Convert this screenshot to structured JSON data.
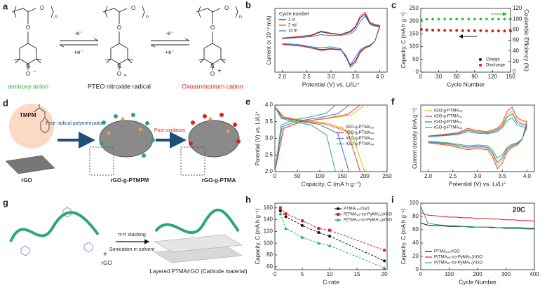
{
  "panels": {
    "a": {
      "label": "a",
      "names": [
        "aminoxy anion",
        "PTEO nitroxide radical",
        "Oxoammonium cation"
      ],
      "name_colors": [
        "#2db34a",
        "#222222",
        "#e0201b"
      ],
      "oxidation": "-e⁻",
      "reduction": "+e⁻",
      "atoms": {
        "oxygen": "O",
        "repeat": "n",
        "nitrogen": "N",
        "anion": "−",
        "radical": "•",
        "cation": "+"
      }
    },
    "d": {
      "label": "d",
      "monomer": "TMPM",
      "substrate": "rGO",
      "step1": "Free radical polymerization",
      "intermediate": "rGO-g-PTMPM",
      "step2": "Post-oxidation",
      "product": "rGO-g-PTMA"
    },
    "g": {
      "label": "g",
      "plus": "+",
      "substrate": "rGO",
      "step1": "π-π stacking",
      "step2": "Sonication in solvent",
      "product": "Layered PTMA/rGO (Cathode material)"
    }
  },
  "chart_data": [
    {
      "panel": "b",
      "type": "line",
      "xlabel": "Potential (V) vs. Li/Li⁺",
      "ylabel": "Current (x 10⁻² mA)",
      "xlim": [
        1.85,
        4.15
      ],
      "xticks": [
        {
          "value": 2,
          "label": "2.0"
        },
        2.5,
        {
          "value": 3,
          "label": "3.0"
        },
        3.5,
        {
          "value": 4,
          "label": "4.0"
        }
      ],
      "ylim": [
        -1.7,
        1.7
      ],
      "legend": "upper left",
      "legend_title": "Cycle number",
      "x": [
        2.0,
        2.2,
        2.4,
        2.6,
        2.8,
        3.0,
        3.2,
        3.4,
        3.5,
        3.6,
        3.7,
        3.8,
        3.9,
        4.0,
        3.9,
        3.8,
        3.7,
        3.6,
        3.5,
        3.4,
        3.3,
        3.2,
        3.0,
        2.8,
        2.6,
        2.4,
        2.2,
        2.0
      ],
      "series": [
        {
          "name": "1 st",
          "color": "#222222",
          "values": [
            0.1,
            0.15,
            0.2,
            0.25,
            0.45,
            0.35,
            0.3,
            0.45,
            0.7,
            1.2,
            1.4,
            0.9,
            0.8,
            0.75,
            -0.05,
            -0.3,
            -0.4,
            -0.6,
            -1.1,
            -1.35,
            -0.8,
            -0.5,
            -0.45,
            -0.5,
            -0.4,
            -0.3,
            -0.25,
            -0.2
          ]
        },
        {
          "name": "2 nd",
          "color": "#e8413c",
          "values": [
            0.12,
            0.17,
            0.22,
            0.28,
            0.5,
            0.38,
            0.32,
            0.5,
            0.75,
            1.3,
            1.5,
            0.95,
            0.85,
            0.8,
            -0.05,
            -0.32,
            -0.42,
            -0.65,
            -1.2,
            -1.45,
            -0.85,
            -0.52,
            -0.48,
            -0.55,
            -0.42,
            -0.32,
            -0.27,
            -0.22
          ]
        },
        {
          "name": "10 th",
          "color": "#3b6fd1",
          "values": [
            0.08,
            0.12,
            0.15,
            0.2,
            0.3,
            0.25,
            0.25,
            0.35,
            0.55,
            1.0,
            1.3,
            0.85,
            0.75,
            0.7,
            -0.05,
            -0.25,
            -0.35,
            -0.5,
            -0.9,
            -1.3,
            -0.9,
            -0.45,
            -0.35,
            -0.4,
            -0.35,
            -0.25,
            -0.2,
            -0.18
          ]
        }
      ]
    },
    {
      "panel": "c",
      "type": "scatter",
      "xlabel": "Cycle Number",
      "ylabel": "Capacity, C (mA h g⁻¹)",
      "y2label": "Coulombic Efficiency (%)",
      "xlim": [
        0,
        150
      ],
      "xticks": [
        0,
        30,
        60,
        90,
        120,
        150
      ],
      "ylim": [
        0,
        250
      ],
      "yticks": [
        0,
        50,
        100,
        150,
        200,
        250
      ],
      "y2lim": [
        0,
        120
      ],
      "y2ticks": [
        0,
        20,
        40,
        60,
        80,
        100,
        120
      ],
      "legend": "lower right",
      "x": [
        1,
        10,
        20,
        30,
        40,
        50,
        60,
        70,
        80,
        90,
        100,
        110,
        120,
        130,
        140,
        150
      ],
      "series": [
        {
          "name": "Charge",
          "color": "#111111",
          "values": [
            168,
            166,
            165,
            165,
            164,
            164,
            164,
            163,
            163,
            163,
            163,
            162,
            162,
            162,
            162,
            162
          ]
        },
        {
          "name": "Discharge",
          "color": "#e8141a",
          "values": [
            167,
            165,
            164,
            164,
            163,
            163,
            163,
            162,
            162,
            162,
            162,
            161,
            161,
            161,
            161,
            161
          ]
        },
        {
          "color": "#1fbf2a",
          "axis": "y2",
          "values": [
            98.5,
            99.6,
            99.8,
            99.8,
            99.9,
            99.9,
            99.9,
            99.9,
            99.9,
            99.9,
            99.9,
            99.9,
            99.9,
            99.9,
            99.9,
            99.9
          ]
        }
      ]
    },
    {
      "panel": "e",
      "type": "line",
      "xlabel": "Capacity, C (mA h g⁻¹)",
      "ylabel": "Potential (V) vs. Li/Li⁺",
      "xlim": [
        0,
        250
      ],
      "xticks": [
        0,
        50,
        100,
        150,
        200,
        250
      ],
      "ylim": [
        2,
        4
      ],
      "yticks": [
        {
          "value": 2,
          "label": "2.0"
        },
        2.5,
        {
          "value": 3,
          "label": "3.0"
        },
        3.5,
        {
          "value": 4,
          "label": "4.0"
        }
      ],
      "legend": "center right",
      "series": [
        {
          "name": "rGO-g-PTMA₂₈",
          "color": "#f2b705",
          "x": [
            0,
            20,
            60,
            120,
            170,
            200,
            null,
            0,
            20,
            60,
            120,
            170,
            200
          ],
          "values": [
            2.0,
            3.3,
            3.5,
            3.6,
            3.7,
            4.0,
            null,
            3.95,
            3.65,
            3.55,
            3.45,
            3.2,
            2.0
          ]
        },
        {
          "name": "rGO-g-PTMA₄₅",
          "color": "#e8413c",
          "x": [
            0,
            19,
            57,
            114,
            162,
            190,
            null,
            0,
            19,
            57,
            114,
            162,
            190
          ],
          "values": [
            2.0,
            3.3,
            3.5,
            3.6,
            3.72,
            4.0,
            null,
            3.95,
            3.63,
            3.53,
            3.43,
            3.2,
            2.0
          ]
        },
        {
          "name": "rGO-g-PTMA₆₂",
          "color": "#3b6fd1",
          "x": [
            0,
            16,
            50,
            99,
            140,
            165,
            null,
            0,
            16,
            50,
            99,
            140,
            165
          ],
          "values": [
            2.0,
            3.35,
            3.52,
            3.62,
            3.74,
            4.0,
            null,
            3.95,
            3.62,
            3.52,
            3.42,
            3.15,
            2.0
          ]
        },
        {
          "name": "rGO-g-PTMA₈₄",
          "color": "#2aa876",
          "x": [
            0,
            14,
            41,
            81,
            115,
            135,
            null,
            0,
            14,
            41,
            81,
            115,
            135
          ],
          "values": [
            2.0,
            3.4,
            3.55,
            3.65,
            3.76,
            4.0,
            null,
            3.95,
            3.6,
            3.5,
            3.4,
            3.1,
            2.0
          ]
        }
      ]
    },
    {
      "panel": "f",
      "type": "line",
      "xlabel": "Potential (V) vs. Li/Li⁺",
      "ylabel": "Current density (mA g⁻¹)",
      "xlim": [
        1.85,
        4.15
      ],
      "xticks": [
        {
          "value": 2,
          "label": "2.0"
        },
        2.5,
        {
          "value": 3,
          "label": "3.0"
        },
        3.5,
        {
          "value": 4,
          "label": "4.0"
        }
      ],
      "ylim": [
        -1.7,
        1.7
      ],
      "legend": "upper left",
      "x": [
        2.0,
        2.2,
        2.4,
        2.6,
        2.8,
        3.0,
        3.2,
        3.4,
        3.5,
        3.6,
        3.7,
        3.8,
        3.9,
        4.0,
        3.9,
        3.8,
        3.7,
        3.6,
        3.5,
        3.4,
        3.3,
        3.2,
        3.0,
        2.8,
        2.6,
        2.4,
        2.2,
        2.0
      ],
      "series": [
        {
          "name": "rGO-g-PTMA₂₈",
          "color": "#f2b705",
          "values": [
            0.1,
            0.15,
            0.2,
            0.25,
            0.45,
            0.35,
            0.3,
            0.45,
            0.7,
            1.2,
            1.4,
            0.9,
            0.8,
            0.75,
            -0.05,
            -0.3,
            -0.4,
            -0.6,
            -1.1,
            -1.35,
            -0.8,
            -0.5,
            -0.45,
            -0.5,
            -0.4,
            -0.3,
            -0.25,
            -0.2
          ]
        },
        {
          "name": "rGO-g-PTMA₄₅",
          "color": "#e8413c",
          "values": [
            0.12,
            0.17,
            0.23,
            0.29,
            0.52,
            0.4,
            0.35,
            0.52,
            0.8,
            1.38,
            1.6,
            1.04,
            0.92,
            0.86,
            -0.06,
            -0.35,
            -0.46,
            -0.69,
            -1.27,
            -1.55,
            -0.92,
            -0.58,
            -0.52,
            -0.58,
            -0.46,
            -0.35,
            -0.29,
            -0.23
          ]
        },
        {
          "name": "rGO-g-PTMA₆₂",
          "color": "#3b6fd1",
          "values": [
            0.09,
            0.14,
            0.18,
            0.23,
            0.41,
            0.32,
            0.27,
            0.41,
            0.63,
            1.08,
            1.26,
            0.81,
            0.72,
            0.68,
            -0.05,
            -0.27,
            -0.36,
            -0.54,
            -0.99,
            -1.22,
            -0.72,
            -0.45,
            -0.41,
            -0.45,
            -0.36,
            -0.27,
            -0.23,
            -0.18
          ]
        },
        {
          "name": "rGO-g-PTMA₈₄",
          "color": "#2aa876",
          "values": [
            0.08,
            0.11,
            0.15,
            0.19,
            0.34,
            0.26,
            0.23,
            0.34,
            0.53,
            0.9,
            1.05,
            0.68,
            0.6,
            0.56,
            -0.04,
            -0.23,
            -0.3,
            -0.45,
            -0.83,
            -1.01,
            -0.6,
            -0.38,
            -0.34,
            -0.38,
            -0.3,
            -0.23,
            -0.19,
            -0.15
          ]
        }
      ]
    },
    {
      "panel": "h",
      "type": "line",
      "linestyle": "dashed",
      "xlabel": "C-rate",
      "ylabel": "Capacity, C (mA h g⁻¹)",
      "xlim": [
        0,
        20.5
      ],
      "xticks": [
        0,
        5,
        10,
        15,
        20
      ],
      "ylim": [
        55,
        168
      ],
      "yticks": [
        60,
        80,
        100,
        120,
        140,
        160
      ],
      "legend": "upper right",
      "x": [
        1,
        2,
        5,
        8,
        10,
        20
      ],
      "series": [
        {
          "name": "PTMA₁₀₀/rGO",
          "color": "#111111",
          "marker": "circle",
          "values": [
            155,
            145,
            130,
            118,
            112,
            70
          ]
        },
        {
          "name": "P(TMA₈₉-co-PyMA₁₁)/rGO",
          "color": "#e8141a",
          "marker": "square",
          "values": [
            160,
            150,
            138,
            125,
            122,
            88
          ]
        },
        {
          "name": "P(TMA₈₇-co-PyMA₁₃)/rGO",
          "color": "#2aa876",
          "marker": "triangle",
          "values": [
            150,
            125,
            110,
            100,
            96,
            58
          ]
        }
      ]
    },
    {
      "panel": "i",
      "type": "line",
      "xlabel": "Cycle Number",
      "ylabel": "Capacity, C (mA h g⁻¹)",
      "annotation": "20C",
      "xlim": [
        0,
        400
      ],
      "xticks": [
        0,
        100,
        200,
        300,
        400
      ],
      "ylim": [
        0,
        100
      ],
      "yticks": [
        0,
        20,
        40,
        60,
        80,
        100
      ],
      "legend": "lower left",
      "x": [
        0,
        25,
        50,
        75,
        100,
        125,
        150,
        175,
        200,
        225,
        250,
        275,
        300,
        325,
        350,
        375,
        400
      ],
      "series": [
        {
          "name": "PTMA₁₀₀/rGO",
          "color": "#111111",
          "values": [
            70,
            67,
            66,
            66,
            65,
            65,
            65,
            64,
            64,
            64,
            64,
            63,
            63,
            63,
            63,
            62,
            62
          ]
        },
        {
          "name": "P(TMA₈₉-co-PyMA₁₁)/rGO",
          "color": "#e8141a",
          "values": [
            86,
            82,
            81,
            80,
            79,
            79,
            78,
            78,
            77,
            77,
            76,
            76,
            75,
            75,
            74,
            74,
            73
          ]
        },
        {
          "name": "P(TMA₈₇-co-PyMA₁₃)/rGO",
          "color": "#2aa876",
          "values": [
            95,
            70,
            68,
            67,
            66,
            66,
            65,
            65,
            64,
            64,
            63,
            63,
            62,
            62,
            62,
            61,
            61
          ]
        }
      ]
    }
  ]
}
